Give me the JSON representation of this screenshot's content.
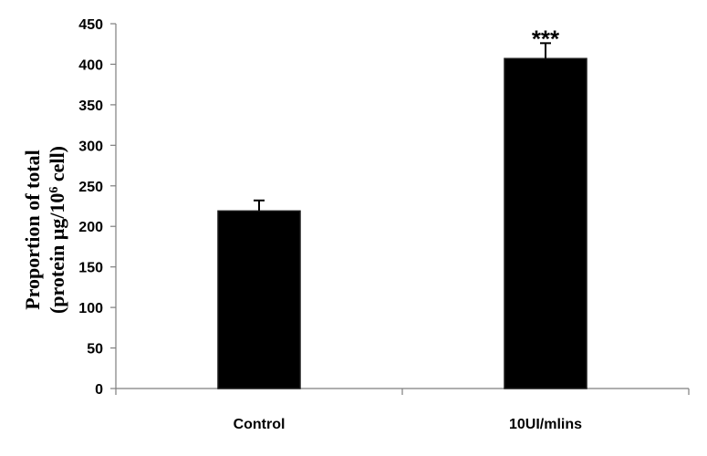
{
  "chart_data": {
    "type": "bar",
    "categories": [
      "Control",
      "10UI/mlins"
    ],
    "values": [
      219,
      407
    ],
    "errors": [
      13,
      19
    ],
    "annotations": [
      "",
      "***"
    ],
    "ylabel_line1": "Proportion of total",
    "ylabel_line2_prefix": "(protein μg/10",
    "ylabel_line2_sup": "6",
    "ylabel_line2_suffix": " cell)",
    "xlabel": "",
    "ylim": [
      0,
      450
    ],
    "yticks": [
      0,
      50,
      100,
      150,
      200,
      250,
      300,
      350,
      400,
      450
    ],
    "grid": false,
    "bar_color": "#000000",
    "axis_color": "#7f7f7f"
  }
}
